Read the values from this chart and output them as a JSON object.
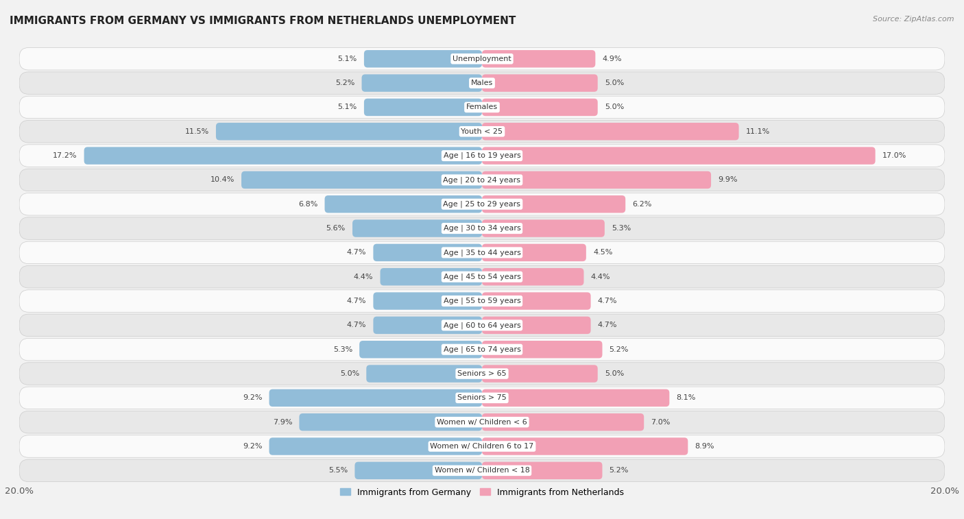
{
  "title": "IMMIGRANTS FROM GERMANY VS IMMIGRANTS FROM NETHERLANDS UNEMPLOYMENT",
  "source": "Source: ZipAtlas.com",
  "categories": [
    "Unemployment",
    "Males",
    "Females",
    "Youth < 25",
    "Age | 16 to 19 years",
    "Age | 20 to 24 years",
    "Age | 25 to 29 years",
    "Age | 30 to 34 years",
    "Age | 35 to 44 years",
    "Age | 45 to 54 years",
    "Age | 55 to 59 years",
    "Age | 60 to 64 years",
    "Age | 65 to 74 years",
    "Seniors > 65",
    "Seniors > 75",
    "Women w/ Children < 6",
    "Women w/ Children 6 to 17",
    "Women w/ Children < 18"
  ],
  "germany_values": [
    5.1,
    5.2,
    5.1,
    11.5,
    17.2,
    10.4,
    6.8,
    5.6,
    4.7,
    4.4,
    4.7,
    4.7,
    5.3,
    5.0,
    9.2,
    7.9,
    9.2,
    5.5
  ],
  "netherlands_values": [
    4.9,
    5.0,
    5.0,
    11.1,
    17.0,
    9.9,
    6.2,
    5.3,
    4.5,
    4.4,
    4.7,
    4.7,
    5.2,
    5.0,
    8.1,
    7.0,
    8.9,
    5.2
  ],
  "germany_color": "#92bdd9",
  "netherlands_color": "#f2a0b5",
  "background_color": "#f2f2f2",
  "row_color_light": "#fafafa",
  "row_color_dark": "#e8e8e8",
  "axis_max": 20.0,
  "label_germany": "Immigrants from Germany",
  "label_netherlands": "Immigrants from Netherlands",
  "title_fontsize": 11,
  "source_fontsize": 8,
  "bar_label_fontsize": 8,
  "cat_label_fontsize": 8,
  "legend_fontsize": 9
}
